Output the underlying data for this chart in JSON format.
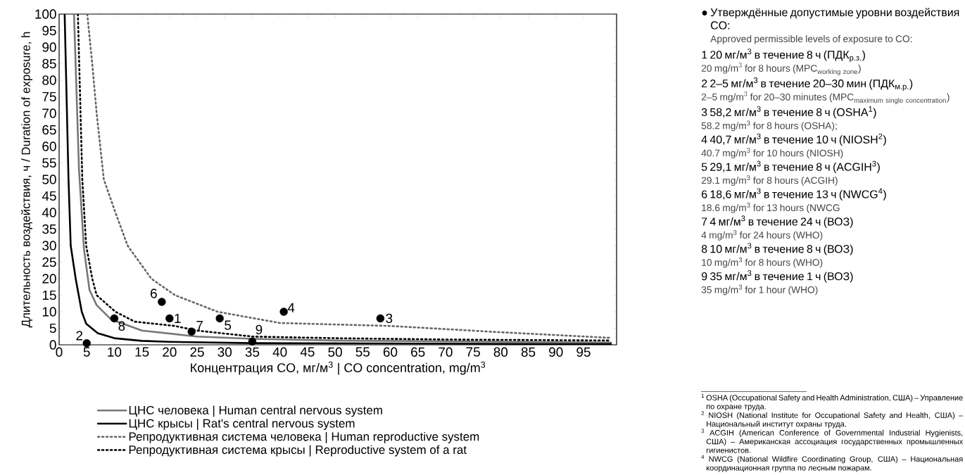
{
  "chart_data": {
    "type": "line",
    "xlabel": "Концентрация CO, мг/м$^{3}$ | CO concentration, mg/m$^{3}$",
    "ylabel": "Длительность воздействия, ч / Duration of exposure, h",
    "xlim": [
      0,
      101
    ],
    "ylim": [
      0,
      100
    ],
    "xticks": [
      0,
      5,
      10,
      15,
      20,
      25,
      30,
      35,
      40,
      45,
      50,
      55,
      60,
      65,
      70,
      75,
      80,
      85,
      90,
      95
    ],
    "yticks": [
      0,
      5,
      10,
      15,
      20,
      25,
      30,
      35,
      40,
      45,
      50,
      55,
      60,
      65,
      70,
      75,
      80,
      85,
      90,
      95,
      100
    ],
    "legend": "bottom",
    "series": [
      {
        "name": "ЦНС человека | Human central nervous system",
        "line_style": "solid",
        "color": "#777777",
        "x": [
          2.7,
          3.6,
          4.5,
          5.5,
          6.8,
          9.4,
          15,
          25,
          35,
          50,
          100
        ],
        "values": [
          100,
          53,
          29,
          16.6,
          12,
          7.7,
          4.3,
          2.5,
          1.8,
          1.3,
          0.7
        ]
      },
      {
        "name": "ЦНС крысы | Rat's central nervous system",
        "line_style": "solid",
        "color": "#000000",
        "x": [
          1,
          1.7,
          2.1,
          3,
          4.1,
          4.9,
          7,
          10,
          15,
          20,
          35,
          100
        ],
        "values": [
          100,
          50,
          30,
          20,
          10,
          6.4,
          3.5,
          2,
          1.2,
          0.9,
          0.5,
          0.2
        ]
      },
      {
        "name": "Репродуктивная система человека | Human reproductive system",
        "line_style": "dotted",
        "color": "#666666",
        "x": [
          5.1,
          6,
          6.8,
          8.1,
          10.2,
          12.4,
          16.7,
          21,
          28.7,
          40,
          60,
          80,
          100
        ],
        "values": [
          100,
          85,
          70,
          50,
          40,
          30,
          20,
          15,
          10,
          6.6,
          5.7,
          3.8,
          2.1
        ]
      },
      {
        "name": "Репродуктивная система крысы | Reproductive system of a rat",
        "line_style": "dotted",
        "color": "#000000",
        "x": [
          3.4,
          4.2,
          4.9,
          6,
          6.8,
          10.2,
          13.7,
          21,
          25,
          35,
          50,
          70,
          100
        ],
        "values": [
          100,
          50,
          30,
          20,
          15,
          10,
          7,
          5.7,
          4.3,
          2.5,
          2,
          1.6,
          1.3
        ]
      },
      {
        "type": "scatter",
        "marker": "circle",
        "color": "#000000",
        "x": [
          20,
          5,
          58.2,
          40.7,
          29.1,
          18.6,
          24,
          10,
          35
        ],
        "values": [
          8,
          0.5,
          8,
          10,
          8,
          13,
          4,
          8,
          1
        ]
      }
    ],
    "annotations": [
      {
        "text": "1",
        "x": 20,
        "y": 8
      },
      {
        "text": "2",
        "x": 5,
        "y": 0.5
      },
      {
        "text": "3",
        "x": 58.2,
        "y": 8
      },
      {
        "text": "4",
        "x": 40.7,
        "y": 10
      },
      {
        "text": "5",
        "x": 29.1,
        "y": 8
      },
      {
        "text": "6",
        "x": 18.6,
        "y": 13
      },
      {
        "text": "7",
        "x": 24,
        "y": 4
      },
      {
        "text": "8",
        "x": 10,
        "y": 8
      },
      {
        "text": "9",
        "x": 35,
        "y": 1
      },
      "● Утверждённые допустимые уровни воздействия CO:",
      "Approved permissible levels of exposure to CO:",
      "1 20 мг/м$^{3}$ в течение 8 ч (ПДК$_{р.з.}$)",
      "\\text{20 mg/m}^{3}\\text{ for 8 hours (MPC}_{\\text{working zone}}\\text{)}",
      "2 2–5 мг/м$^{3}$ в течение 20–30 мин (ПДК$_{м.р.}$)",
      "\\text{2–5 mg/m}^{3}\\text{ for 20–30 minutes (MPC}_{\\text{maximum single concentration}}\\text{)}",
      "3 58,2 мг/м$^{3}$ в течение 8 ч (OSHA$^{1}$)",
      "58.2 mg/m$^{3}$ for 8 hours (OSHA);",
      "4 40,7 мг/м$^{3}$ в течение 10 ч (NIOSH$^{2}$)",
      "40.7 mg/m$^{3}$ for 10 hours (NIOSH)",
      "5 29,1 мг/м$^{3}$ в течение 8 ч (ACGIH$^{3}$)",
      "29.1 mg/m$^{3}$ for 8 hours (ACGIH)",
      "6 18,6 мг/м$^{3}$ в течение 13 ч (NWCG$^{4}$)",
      "18.6 mg/m$^{3}$ for 13 hours (NWCG",
      "7 4 мг/м$^{3}$ в течение 24 ч (ВОЗ)",
      "4 mg/m$^{3}$ for 24 hours (WHO)",
      "8 10 мг/м$^{3}$ в течение 8 ч (ВОЗ)",
      "10 mg/m$^{3}$ for 8 hours (WHO)",
      "9 35 мг/м$^{3}$ в течение 1 ч (ВОЗ)",
      "35 mg/m$^{3}$ for 1 hour (WHO)",
      "$^{1}$ OSHA (Occupational Safety and Health Administration, США) – Управление по охране труда.",
      "$^{2}$ NIOSH (National Institute for Occupational Safety and Health, США) – Национальный институт охраны труда.",
      "$^{3}$ ACGIH (American Conference of Governmental Industrial Hygienists, США) – Американская ассоциация государственных промышленных гигиенистов.",
      "$^{4}$ NWCG (National Wildfire Coordinating Group, США) – Национальная координационная группа по лесным пожарам."
    ]
  }
}
